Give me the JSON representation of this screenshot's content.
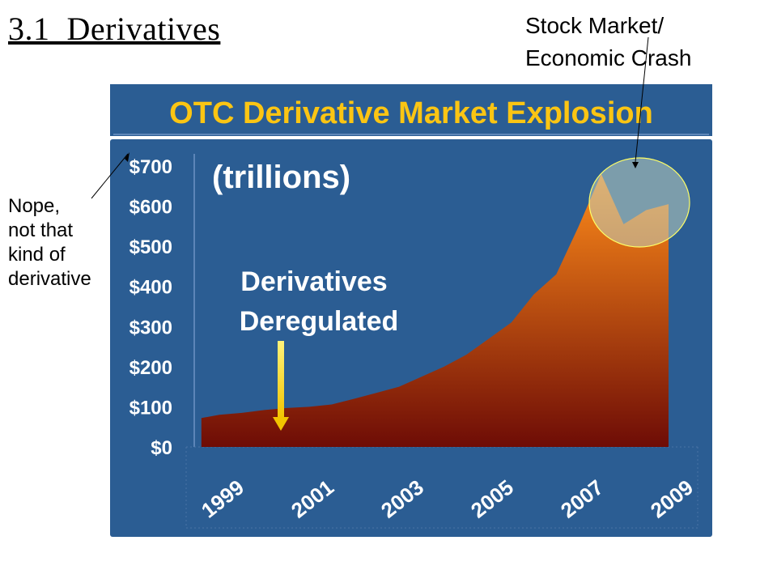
{
  "slide": {
    "title": "3.1  Derivatives",
    "annotation_top_line1": "Stock Market/",
    "annotation_top_line2": "Economic Crash",
    "annotation_left": [
      "Nope,",
      "not that",
      "kind of",
      "derivative"
    ]
  },
  "chart_data": {
    "type": "area",
    "title": "OTC Derivative Market Explosion",
    "unit_label": "(trillions)",
    "annotation": [
      "Derivatives",
      "Deregulated"
    ],
    "x": [
      1998.6,
      1999.0,
      1999.5,
      2000.0,
      2000.5,
      2001.0,
      2001.5,
      2002.0,
      2002.5,
      2003.0,
      2003.5,
      2004.0,
      2004.5,
      2005.0,
      2005.5,
      2006.0,
      2006.5,
      2007.0,
      2007.5,
      2008.0,
      2008.5,
      2009.0
    ],
    "values": [
      72,
      80,
      85,
      92,
      97,
      100,
      106,
      120,
      135,
      150,
      175,
      200,
      230,
      270,
      310,
      380,
      430,
      550,
      680,
      555,
      590,
      605
    ],
    "x_ticks": [
      "1999",
      "2001",
      "2003",
      "2005",
      "2007",
      "2009"
    ],
    "y_ticks": [
      "$0",
      "$100",
      "$200",
      "$300",
      "$400",
      "$500",
      "$600",
      "$700"
    ],
    "ylim": [
      0,
      700
    ],
    "colors": {
      "background": "#2b5d93",
      "title": "#fbc513",
      "area_top": "#ff8c1a",
      "area_bottom": "#6e0c06",
      "arrow": "#f2c400",
      "highlight_circle": "#c0d2c0",
      "highlight_edge": "#ffff66"
    }
  }
}
